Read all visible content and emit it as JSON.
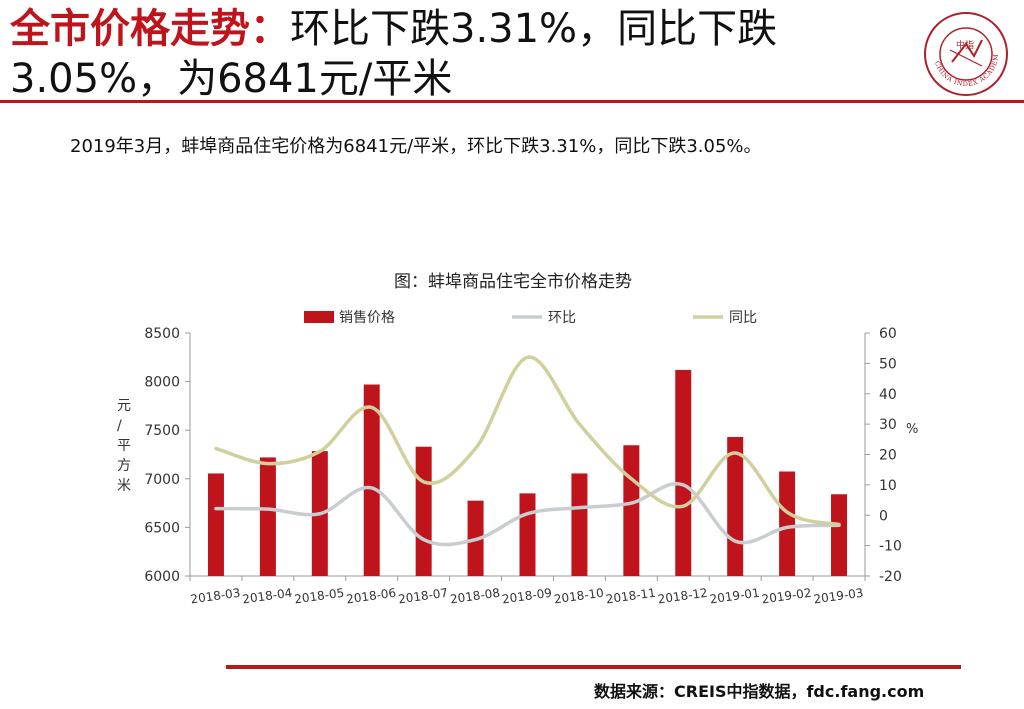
{
  "slide": {
    "title_highlight": "全市价格走势：",
    "title_rest": "环比下跌3.31%，同比下跌3.05%，为6841元/平米",
    "summary": "2019年3月，蚌埠商品住宅价格为6841元/平米，环比下跌3.31%，同比下跌3.05%。",
    "source": "数据来源：CREIS中指数据，fdc.fang.com"
  },
  "logo": {
    "icon": "china-index-academy-seal",
    "text_ring": "CHINA INDEX ACADEMY",
    "center_text": "中指",
    "color": "#b0202a"
  },
  "colors": {
    "accent": "#c0141c",
    "bar": "#c0141c",
    "mom_line": "#c8cdd0",
    "yoy_line": "#cfd09c",
    "axis": "#9a9a9a"
  },
  "chart_data": {
    "type": "bar",
    "title": "图：蚌埠商品住宅全市价格走势",
    "categories": [
      "2018-03",
      "2018-04",
      "2018-05",
      "2018-06",
      "2018-07",
      "2018-08",
      "2018-09",
      "2018-10",
      "2018-11",
      "2018-12",
      "2019-01",
      "2019-02",
      "2019-03"
    ],
    "series": [
      {
        "name": "销售价格",
        "type": "bar",
        "axis": "left",
        "values": [
          7055,
          7220,
          7285,
          7970,
          7330,
          6775,
          6850,
          7055,
          7345,
          8120,
          7430,
          7075,
          6841
        ]
      },
      {
        "name": "环比",
        "type": "line",
        "axis": "right",
        "values": [
          2.2,
          2.0,
          0.5,
          9.0,
          -8.0,
          -8.0,
          0.5,
          2.5,
          4.0,
          10.0,
          -8.5,
          -4.0,
          -3.31
        ]
      },
      {
        "name": "同比",
        "type": "line",
        "axis": "right",
        "values": [
          22.0,
          17.0,
          21.0,
          35.5,
          11.0,
          22.0,
          52.0,
          30.0,
          12.0,
          3.0,
          20.5,
          1.0,
          -3.05
        ]
      }
    ],
    "ylabel_left": "元/平方米",
    "ylabel_right": "%",
    "ylim_left": [
      6000,
      8500
    ],
    "yticks_left": [
      6000,
      6500,
      7000,
      7500,
      8000,
      8500
    ],
    "ylim_right": [
      -20,
      60
    ],
    "yticks_right": [
      -20,
      -10,
      0,
      10,
      20,
      30,
      40,
      50,
      60
    ],
    "legend_position": "top",
    "grid": false
  }
}
